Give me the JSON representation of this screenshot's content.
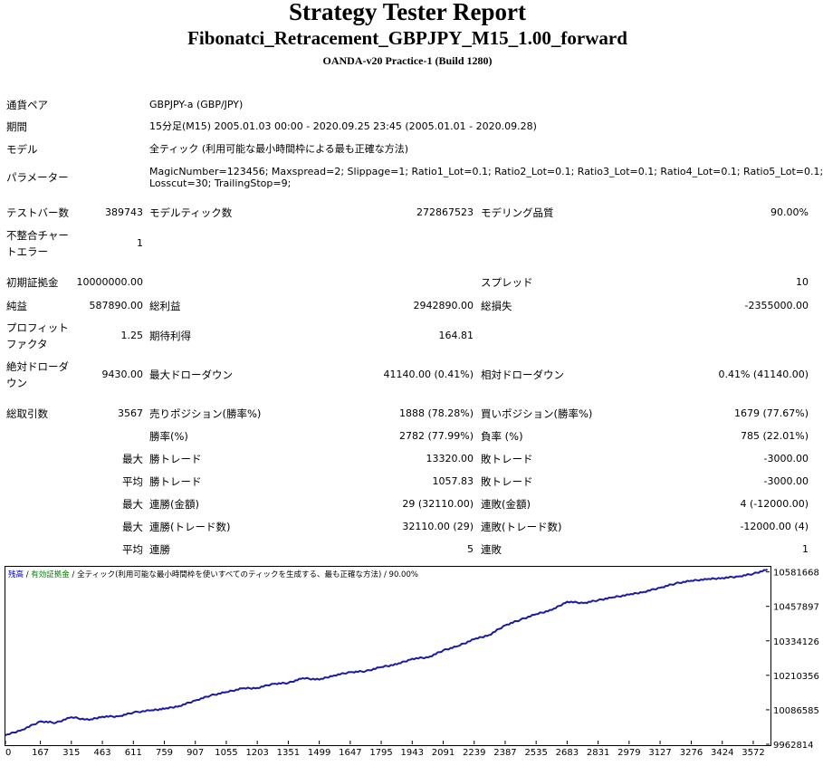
{
  "header": {
    "title": "Strategy Tester Report",
    "subtitle": "Fibonatci_Retracement_GBPJPY_M15_1.00_forward",
    "server": "OANDA-v20 Practice-1 (Build 1280)"
  },
  "info": {
    "symbol_label": "通貨ペア",
    "symbol_value": "GBPJPY-a (GBP/JPY)",
    "period_label": "期間",
    "period_value": "15分足(M15) 2005.01.03 00:00 - 2020.09.25 23:45 (2005.01.01 - 2020.09.28)",
    "model_label": "モデル",
    "model_value": "全ティック (利用可能な最小時間枠による最も正確な方法)",
    "params_label": "パラメーター",
    "params_line1": "MagicNumber=123456; Maxspread=2; Slippage=1; Ratio1_Lot=0.1; Ratio2_Lot=0.1; Ratio3_Lot=0.1; Ratio4_Lot=0.1; Ratio5_Lot=0.1;",
    "params_line2": "Losscut=30; TrailingStop=9;"
  },
  "stats": {
    "bars_label": "テストバー数",
    "bars_value": "389743",
    "ticks_label": "モデルティック数",
    "ticks_value": "272867523",
    "quality_label": "モデリング品質",
    "quality_value": "90.00%",
    "mismatch_label_1": "不整合チャー",
    "mismatch_label_2": "トエラー",
    "mismatch_value": "1",
    "deposit_label": "初期証拠金",
    "deposit_value": "10000000.00",
    "spread_label": "スプレッド",
    "spread_value": "10",
    "net_label": "純益",
    "net_value": "587890.00",
    "gross_profit_label": "総利益",
    "gross_profit_value": "2942890.00",
    "gross_loss_label": "総損失",
    "gross_loss_value": "-2355000.00",
    "pf_label_1": "プロフィット",
    "pf_label_2": "ファクタ",
    "pf_value": "1.25",
    "expected_label": "期待利得",
    "expected_value": "164.81",
    "abs_dd_label_1": "絶対ドローダ",
    "abs_dd_label_2": "ウン",
    "abs_dd_value": "9430.00",
    "max_dd_label": "最大ドローダウン",
    "max_dd_value": "41140.00 (0.41%)",
    "rel_dd_label": "相対ドローダウン",
    "rel_dd_value": "0.41% (41140.00)",
    "trades_label": "総取引数",
    "trades_value": "3567",
    "short_label": "売りポジション(勝率%)",
    "short_value": "1888 (78.28%)",
    "long_label": "買いポジション(勝率%)",
    "long_value": "1679 (77.67%)",
    "win_label": "勝率(%)",
    "win_value": "2782 (77.99%)",
    "loss_label": "負率 (%)",
    "loss_value": "785 (22.01%)",
    "max_label": "最大",
    "avg_label": "平均",
    "largest_win_label": "勝トレード",
    "largest_win_value": "13320.00",
    "largest_loss_label": "敗トレード",
    "largest_loss_value": "-3000.00",
    "avg_win_label": "勝トレード",
    "avg_win_value": "1057.83",
    "avg_loss_label": "敗トレード",
    "avg_loss_value": "-3000.00",
    "max_cons_wins_label": "連勝(金額)",
    "max_cons_wins_value": "29 (32110.00)",
    "max_cons_losses_label": "連敗(金額)",
    "max_cons_losses_value": "4 (-12000.00)",
    "max_cons_profit_label": "連勝(トレード数)",
    "max_cons_profit_value": "32110.00 (29)",
    "max_cons_loss_label": "連敗(トレード数)",
    "max_cons_loss_value": "-12000.00 (4)",
    "avg_cons_wins_label": "連勝",
    "avg_cons_wins_value": "5",
    "avg_cons_losses_label": "連敗",
    "avg_cons_losses_value": "1"
  },
  "colors": {
    "balance_line": "#1a1aa6",
    "legend_balance": "#0000cc",
    "legend_equity": "#008000"
  },
  "chart_data": {
    "type": "line",
    "legend_balance": "残高",
    "legend_sep1": " / ",
    "legend_equity": "有効証拠金",
    "legend_sep2": " / ",
    "legend_rest": "全ティック(利用可能な最小時間枠を使いすべてのティックを生成する、最も正確な方法) / 90.00%",
    "x_ticks": [
      "0",
      "167",
      "315",
      "463",
      "611",
      "759",
      "907",
      "1055",
      "1203",
      "1351",
      "1499",
      "1647",
      "1795",
      "1943",
      "2091",
      "2239",
      "2387",
      "2535",
      "2683",
      "2831",
      "2979",
      "3127",
      "3276",
      "3424",
      "3572"
    ],
    "y_ticks": [
      "10581668",
      "10457897",
      "10334126",
      "10210356",
      "10086585",
      "9962814"
    ],
    "xlim": [
      0,
      3650
    ],
    "ylim": [
      9962814,
      10600000
    ],
    "series": [
      {
        "x": [
          0,
          80,
          167,
          240,
          315,
          400,
          463,
          540,
          611,
          700,
          759,
          830,
          907,
          980,
          1055,
          1130,
          1203,
          1280,
          1351,
          1420,
          1499,
          1570,
          1647,
          1720,
          1795,
          1870,
          1943,
          2020,
          2091,
          2160,
          2239,
          2310,
          2387,
          2460,
          2535,
          2610,
          2683,
          2760,
          2831,
          2900,
          2979,
          3050,
          3127,
          3200,
          3276,
          3350,
          3424,
          3500,
          3572,
          3640
        ],
        "y": [
          9995000,
          10015000,
          10045000,
          10040000,
          10060000,
          10050000,
          10062000,
          10063000,
          10077000,
          10085000,
          10090000,
          10100000,
          10120000,
          10138000,
          10150000,
          10163000,
          10165000,
          10180000,
          10183000,
          10200000,
          10195000,
          10210000,
          10222000,
          10225000,
          10240000,
          10250000,
          10270000,
          10275000,
          10300000,
          10315000,
          10340000,
          10355000,
          10390000,
          10410000,
          10430000,
          10445000,
          10475000,
          10470000,
          10480000,
          10490000,
          10500000,
          10510000,
          10525000,
          10540000,
          10550000,
          10555000,
          10560000,
          10565000,
          10575000,
          10590000
        ]
      }
    ]
  }
}
